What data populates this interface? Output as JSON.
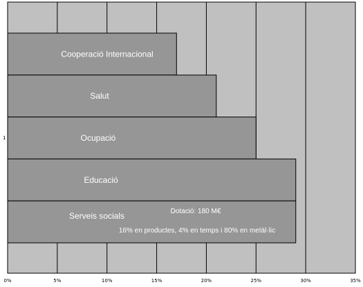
{
  "chart_data": {
    "type": "bar",
    "orientation": "horizontal",
    "y_category": "1",
    "categories": [
      "Cooperació Internacional",
      "Salut",
      "Ocupació",
      "Educació",
      "Serveis socials"
    ],
    "values": [
      17,
      21,
      25,
      29,
      29
    ],
    "xlim": [
      0,
      35
    ],
    "x_ticks": [
      "0%",
      "5%",
      "10%",
      "15%",
      "20%",
      "25%",
      "30%",
      "35%"
    ],
    "grid": true,
    "legend": "none",
    "annotations": [
      "Dotació: 180 M€",
      "16% en productes, 4% en temps i 80% en metàl·lic"
    ],
    "colors": {
      "plot_background": "#c0c0c0",
      "bar_fill": "#969696",
      "bar_stroke": "#000000",
      "label_text": "#ffffff"
    }
  }
}
